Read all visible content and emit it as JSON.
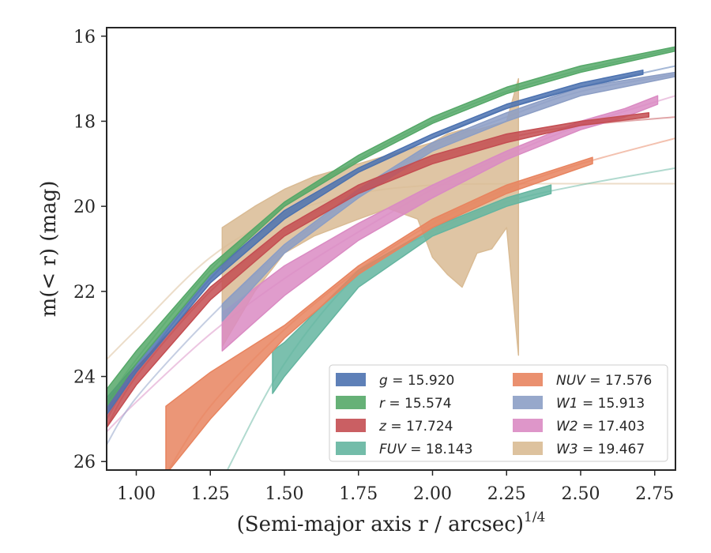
{
  "chart_data": {
    "type": "area",
    "xlabel": "(Semi-major axis r / arcsec)",
    "xlabel_superscript": "1/4",
    "ylabel": "m(< r) (mag)",
    "xlim": [
      0.9,
      2.82
    ],
    "ylim": [
      26.2,
      15.8
    ],
    "y_inverted": true,
    "grid": false,
    "legend_location": "lower-right",
    "x_ticks": [
      "1.00",
      "1.25",
      "1.50",
      "1.75",
      "2.00",
      "2.25",
      "2.50",
      "2.75"
    ],
    "y_ticks": [
      "16",
      "18",
      "20",
      "22",
      "24",
      "26"
    ],
    "series": [
      {
        "name": "g = 15.920",
        "label_var": "g",
        "label_value": "15.920",
        "color": "#4c72b0",
        "fit": [
          [
            0.9,
            25.0
          ],
          [
            1.0,
            23.9
          ],
          [
            1.25,
            21.7
          ],
          [
            1.5,
            20.2
          ],
          [
            1.75,
            19.2
          ],
          [
            2.0,
            18.4
          ],
          [
            2.25,
            17.7
          ],
          [
            2.5,
            17.2
          ],
          [
            2.82,
            16.7
          ]
        ],
        "band_x": [
          0.9,
          1.0,
          1.25,
          1.5,
          1.75,
          2.0,
          2.25,
          2.5,
          2.71
        ],
        "band_lo": [
          24.5,
          23.7,
          21.6,
          20.1,
          19.1,
          18.3,
          17.6,
          17.1,
          16.8
        ],
        "band_hi": [
          24.9,
          23.9,
          21.8,
          20.3,
          19.2,
          18.4,
          17.7,
          17.2,
          16.9
        ]
      },
      {
        "name": "r = 15.574",
        "label_var": "r",
        "label_value": "15.574",
        "color": "#55a868",
        "fit": [
          [
            0.9,
            24.6
          ],
          [
            1.0,
            23.6
          ],
          [
            1.25,
            21.5
          ],
          [
            1.5,
            20.0
          ],
          [
            1.75,
            18.9
          ],
          [
            2.0,
            18.0
          ],
          [
            2.25,
            17.3
          ],
          [
            2.5,
            16.8
          ],
          [
            2.82,
            16.3
          ]
        ],
        "band_x": [
          0.9,
          1.0,
          1.25,
          1.5,
          1.75,
          2.0,
          2.25,
          2.5,
          2.82
        ],
        "band_lo": [
          24.3,
          23.4,
          21.4,
          19.9,
          18.8,
          17.9,
          17.2,
          16.7,
          16.25
        ],
        "band_hi": [
          24.7,
          23.7,
          21.6,
          20.0,
          18.95,
          18.05,
          17.35,
          16.85,
          16.35
        ]
      },
      {
        "name": "z = 17.724",
        "label_var": "z",
        "label_value": "17.724",
        "color": "#c44e52",
        "fit": [
          [
            0.9,
            25.2
          ],
          [
            1.0,
            24.0
          ],
          [
            1.25,
            22.0
          ],
          [
            1.5,
            20.6
          ],
          [
            1.75,
            19.6
          ],
          [
            2.0,
            18.9
          ],
          [
            2.25,
            18.4
          ],
          [
            2.5,
            18.1
          ],
          [
            2.82,
            17.9
          ]
        ],
        "band_x": [
          0.9,
          1.0,
          1.25,
          1.5,
          1.75,
          2.0,
          2.25,
          2.5,
          2.73
        ],
        "band_lo": [
          24.6,
          23.8,
          21.9,
          20.5,
          19.5,
          18.8,
          18.3,
          18.0,
          17.8
        ],
        "band_hi": [
          25.2,
          24.2,
          22.2,
          20.7,
          19.7,
          19.0,
          18.5,
          18.1,
          17.9
        ]
      },
      {
        "name": "FUV = 18.143",
        "label_var": "FUV",
        "label_value": "18.143",
        "color": "#64b5a0",
        "fit": [
          [
            1.3,
            26.3
          ],
          [
            1.5,
            23.7
          ],
          [
            1.75,
            21.6
          ],
          [
            2.0,
            20.6
          ],
          [
            2.25,
            19.9
          ],
          [
            2.5,
            19.5
          ],
          [
            2.82,
            19.1
          ]
        ],
        "band_x": [
          1.46,
          1.5,
          1.75,
          2.0,
          2.25,
          2.4
        ],
        "band_lo": [
          23.4,
          23.2,
          21.5,
          20.5,
          19.8,
          19.5
        ],
        "band_hi": [
          24.4,
          24.0,
          21.9,
          20.7,
          20.0,
          19.7
        ]
      },
      {
        "name": "NUV = 17.576",
        "label_var": "NUV",
        "label_value": "17.576",
        "color": "#e8845f",
        "fit": [
          [
            1.1,
            26.3
          ],
          [
            1.25,
            24.7
          ],
          [
            1.5,
            22.9
          ],
          [
            1.75,
            21.5
          ],
          [
            2.0,
            20.4
          ],
          [
            2.25,
            19.6
          ],
          [
            2.5,
            19.0
          ],
          [
            2.82,
            18.4
          ]
        ],
        "band_x": [
          1.1,
          1.25,
          1.5,
          1.75,
          2.0,
          2.25,
          2.54
        ],
        "band_lo": [
          24.7,
          23.9,
          22.8,
          21.4,
          20.3,
          19.5,
          18.85
        ],
        "band_hi": [
          26.3,
          25.0,
          23.1,
          21.6,
          20.5,
          19.7,
          19.0
        ]
      },
      {
        "name": "W1 = 15.913",
        "label_var": "W1",
        "label_value": "15.913",
        "color": "#8c9ec5",
        "fit": [
          [
            0.9,
            25.6
          ],
          [
            1.0,
            24.5
          ],
          [
            1.25,
            22.6
          ],
          [
            1.5,
            21.0
          ],
          [
            1.75,
            19.7
          ],
          [
            2.0,
            18.6
          ],
          [
            2.25,
            17.9
          ],
          [
            2.5,
            17.3
          ],
          [
            2.82,
            16.9
          ]
        ],
        "band_x": [
          1.29,
          1.5,
          1.75,
          2.0,
          2.25,
          2.5,
          2.82
        ],
        "band_lo": [
          22.3,
          20.9,
          19.6,
          18.5,
          17.8,
          17.2,
          16.85
        ],
        "band_hi": [
          22.7,
          21.1,
          19.8,
          18.7,
          18.0,
          17.4,
          16.95
        ]
      },
      {
        "name": "W2 = 17.403",
        "label_var": "W2",
        "label_value": "17.403",
        "color": "#da8bc3",
        "fit": [
          [
            0.9,
            25.3
          ],
          [
            1.0,
            24.6
          ],
          [
            1.25,
            23.0
          ],
          [
            1.5,
            21.7
          ],
          [
            1.75,
            20.6
          ],
          [
            2.0,
            19.6
          ],
          [
            2.25,
            18.8
          ],
          [
            2.5,
            18.1
          ],
          [
            2.82,
            17.4
          ]
        ],
        "band_x": [
          1.29,
          1.5,
          1.75,
          2.0,
          2.25,
          2.5,
          2.65,
          2.76
        ],
        "band_lo": [
          22.5,
          21.4,
          20.4,
          19.5,
          18.7,
          18.0,
          17.7,
          17.4
        ],
        "band_hi": [
          23.4,
          22.1,
          20.8,
          19.8,
          18.9,
          18.2,
          17.9,
          17.6
        ]
      },
      {
        "name": "W3 = 19.467",
        "label_var": "W3",
        "label_value": "19.467",
        "color": "#d9bb94",
        "fit": [
          [
            0.9,
            23.6
          ],
          [
            1.0,
            22.9
          ],
          [
            1.25,
            21.2
          ],
          [
            1.5,
            20.2
          ],
          [
            1.75,
            19.7
          ],
          [
            2.0,
            19.5
          ],
          [
            2.25,
            19.47
          ],
          [
            2.5,
            19.467
          ],
          [
            2.82,
            19.467
          ]
        ],
        "band_x": [
          1.29,
          1.4,
          1.5,
          1.6,
          1.75,
          1.85,
          1.95,
          2.0,
          2.05,
          2.1,
          2.15,
          2.2,
          2.25,
          2.29
        ],
        "band_lo": [
          20.5,
          20.0,
          19.6,
          19.3,
          19.0,
          18.8,
          18.6,
          18.5,
          18.3,
          18.2,
          18.2,
          18.1,
          18.0,
          17.0
        ],
        "band_hi": [
          23.3,
          22.0,
          21.1,
          20.7,
          20.3,
          20.05,
          20.3,
          21.2,
          21.6,
          21.9,
          21.1,
          21.0,
          20.5,
          23.5
        ]
      }
    ]
  }
}
